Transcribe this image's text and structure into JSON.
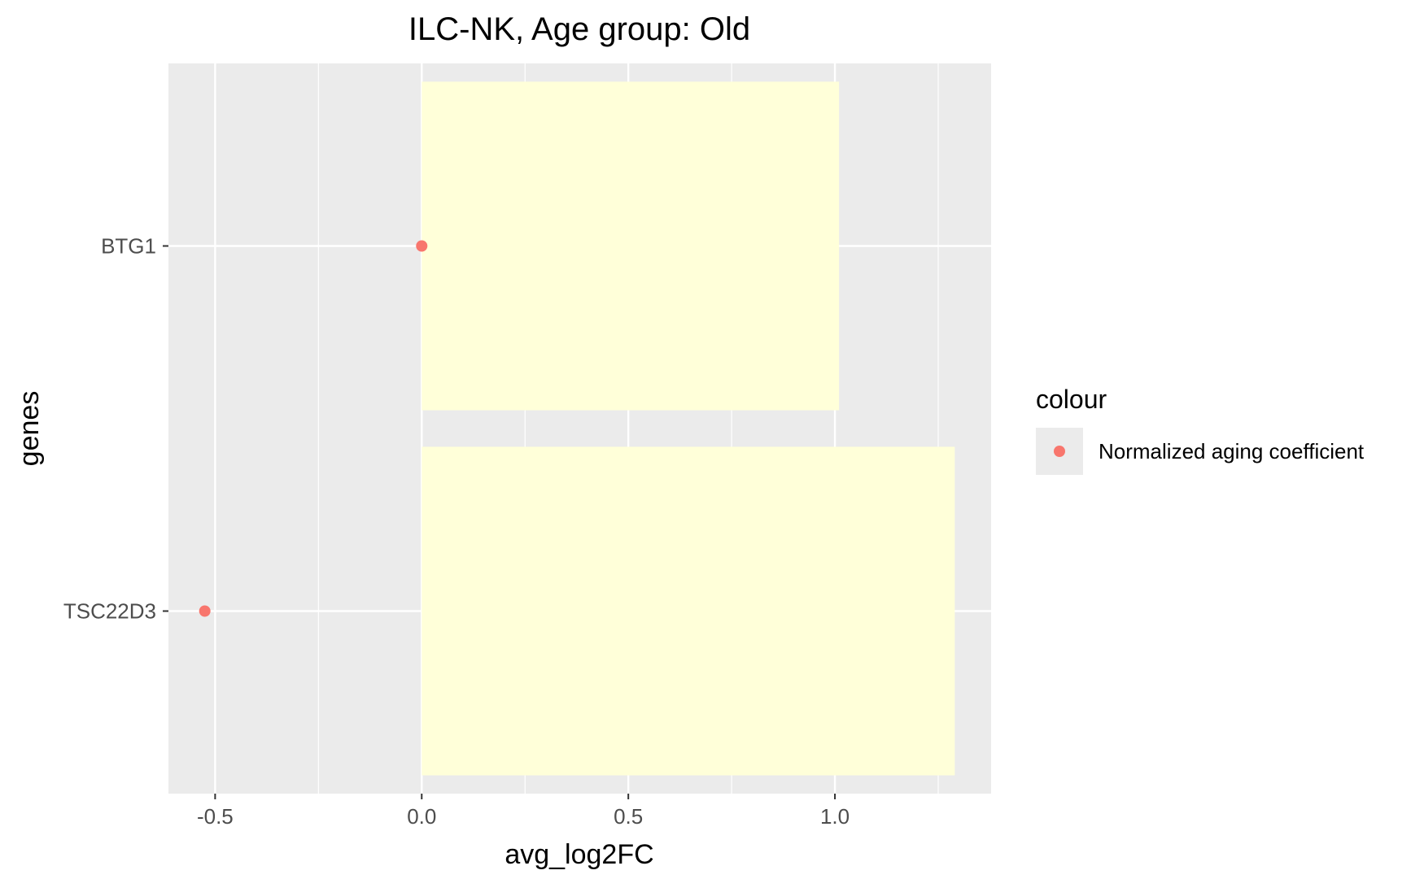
{
  "chart_data": {
    "type": "bar",
    "orientation": "horizontal",
    "title": "ILC-NK, Age group: Old",
    "xlabel": "avg_log2FC",
    "ylabel": "genes",
    "categories": [
      "BTG1",
      "TSC22D3"
    ],
    "values": [
      1.01,
      1.29
    ],
    "bar_color": "#FFFFD9",
    "points": {
      "name": "Normalized aging coefficient",
      "color": "#F8766D",
      "values": [
        0.0,
        -0.525
      ]
    },
    "xlim": [
      -0.613,
      1.378
    ],
    "xticks": [
      -0.5,
      0.0,
      0.5,
      1.0
    ],
    "xtick_labels": [
      "-0.5",
      "0.0",
      "0.5",
      "1.0"
    ],
    "grid": true,
    "panel_background": "#EBEBEB",
    "legend": {
      "title": "colour",
      "position": "right",
      "entries": [
        "Normalized aging coefficient"
      ]
    }
  }
}
